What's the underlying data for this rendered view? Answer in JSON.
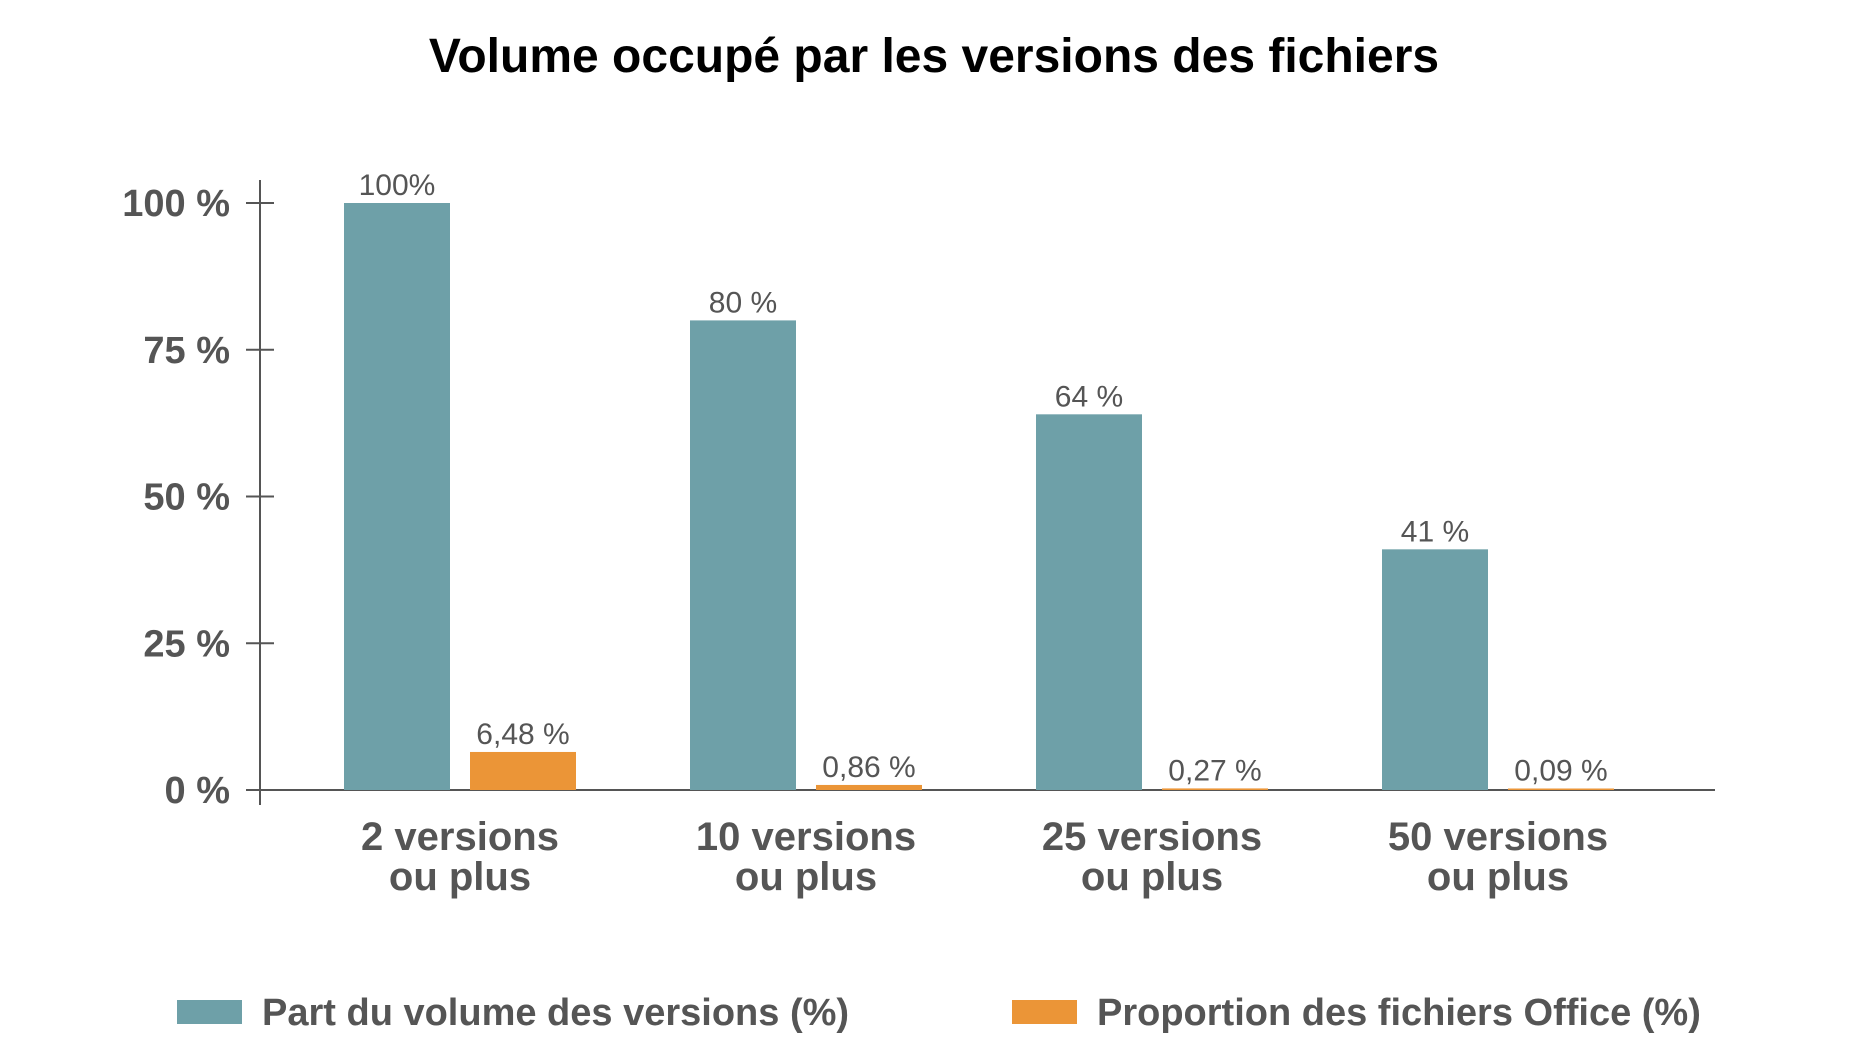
{
  "chart_data": {
    "type": "bar",
    "title": "Volume occupé par les versions des fichiers",
    "categories": [
      [
        "2 versions",
        "ou plus"
      ],
      [
        "10 versions",
        "ou plus"
      ],
      [
        "25 versions",
        "ou plus"
      ],
      [
        "50 versions",
        "ou plus"
      ]
    ],
    "series": [
      {
        "name": "Part du volume des versions (%)",
        "color": "#6ea0a8",
        "values": [
          100,
          80,
          64,
          41
        ],
        "labels": [
          "100%",
          "80 %",
          "64 %",
          "41 %"
        ]
      },
      {
        "name": "Proportion des fichiers Office (%)",
        "color": "#eb9537",
        "values": [
          6.48,
          0.86,
          0.27,
          0.09
        ],
        "labels": [
          "6,48 %",
          "0,86 %",
          "0,27 %",
          "0,09 %"
        ]
      }
    ],
    "yticks": [
      0,
      25,
      50,
      75,
      100
    ],
    "ytick_labels": [
      "0 %",
      "25 %",
      "50 %",
      "75 %",
      "100 %"
    ],
    "ylim": [
      0,
      100
    ],
    "xlabel": "",
    "ylabel": "",
    "grid": false,
    "legend_position": "bottom"
  }
}
